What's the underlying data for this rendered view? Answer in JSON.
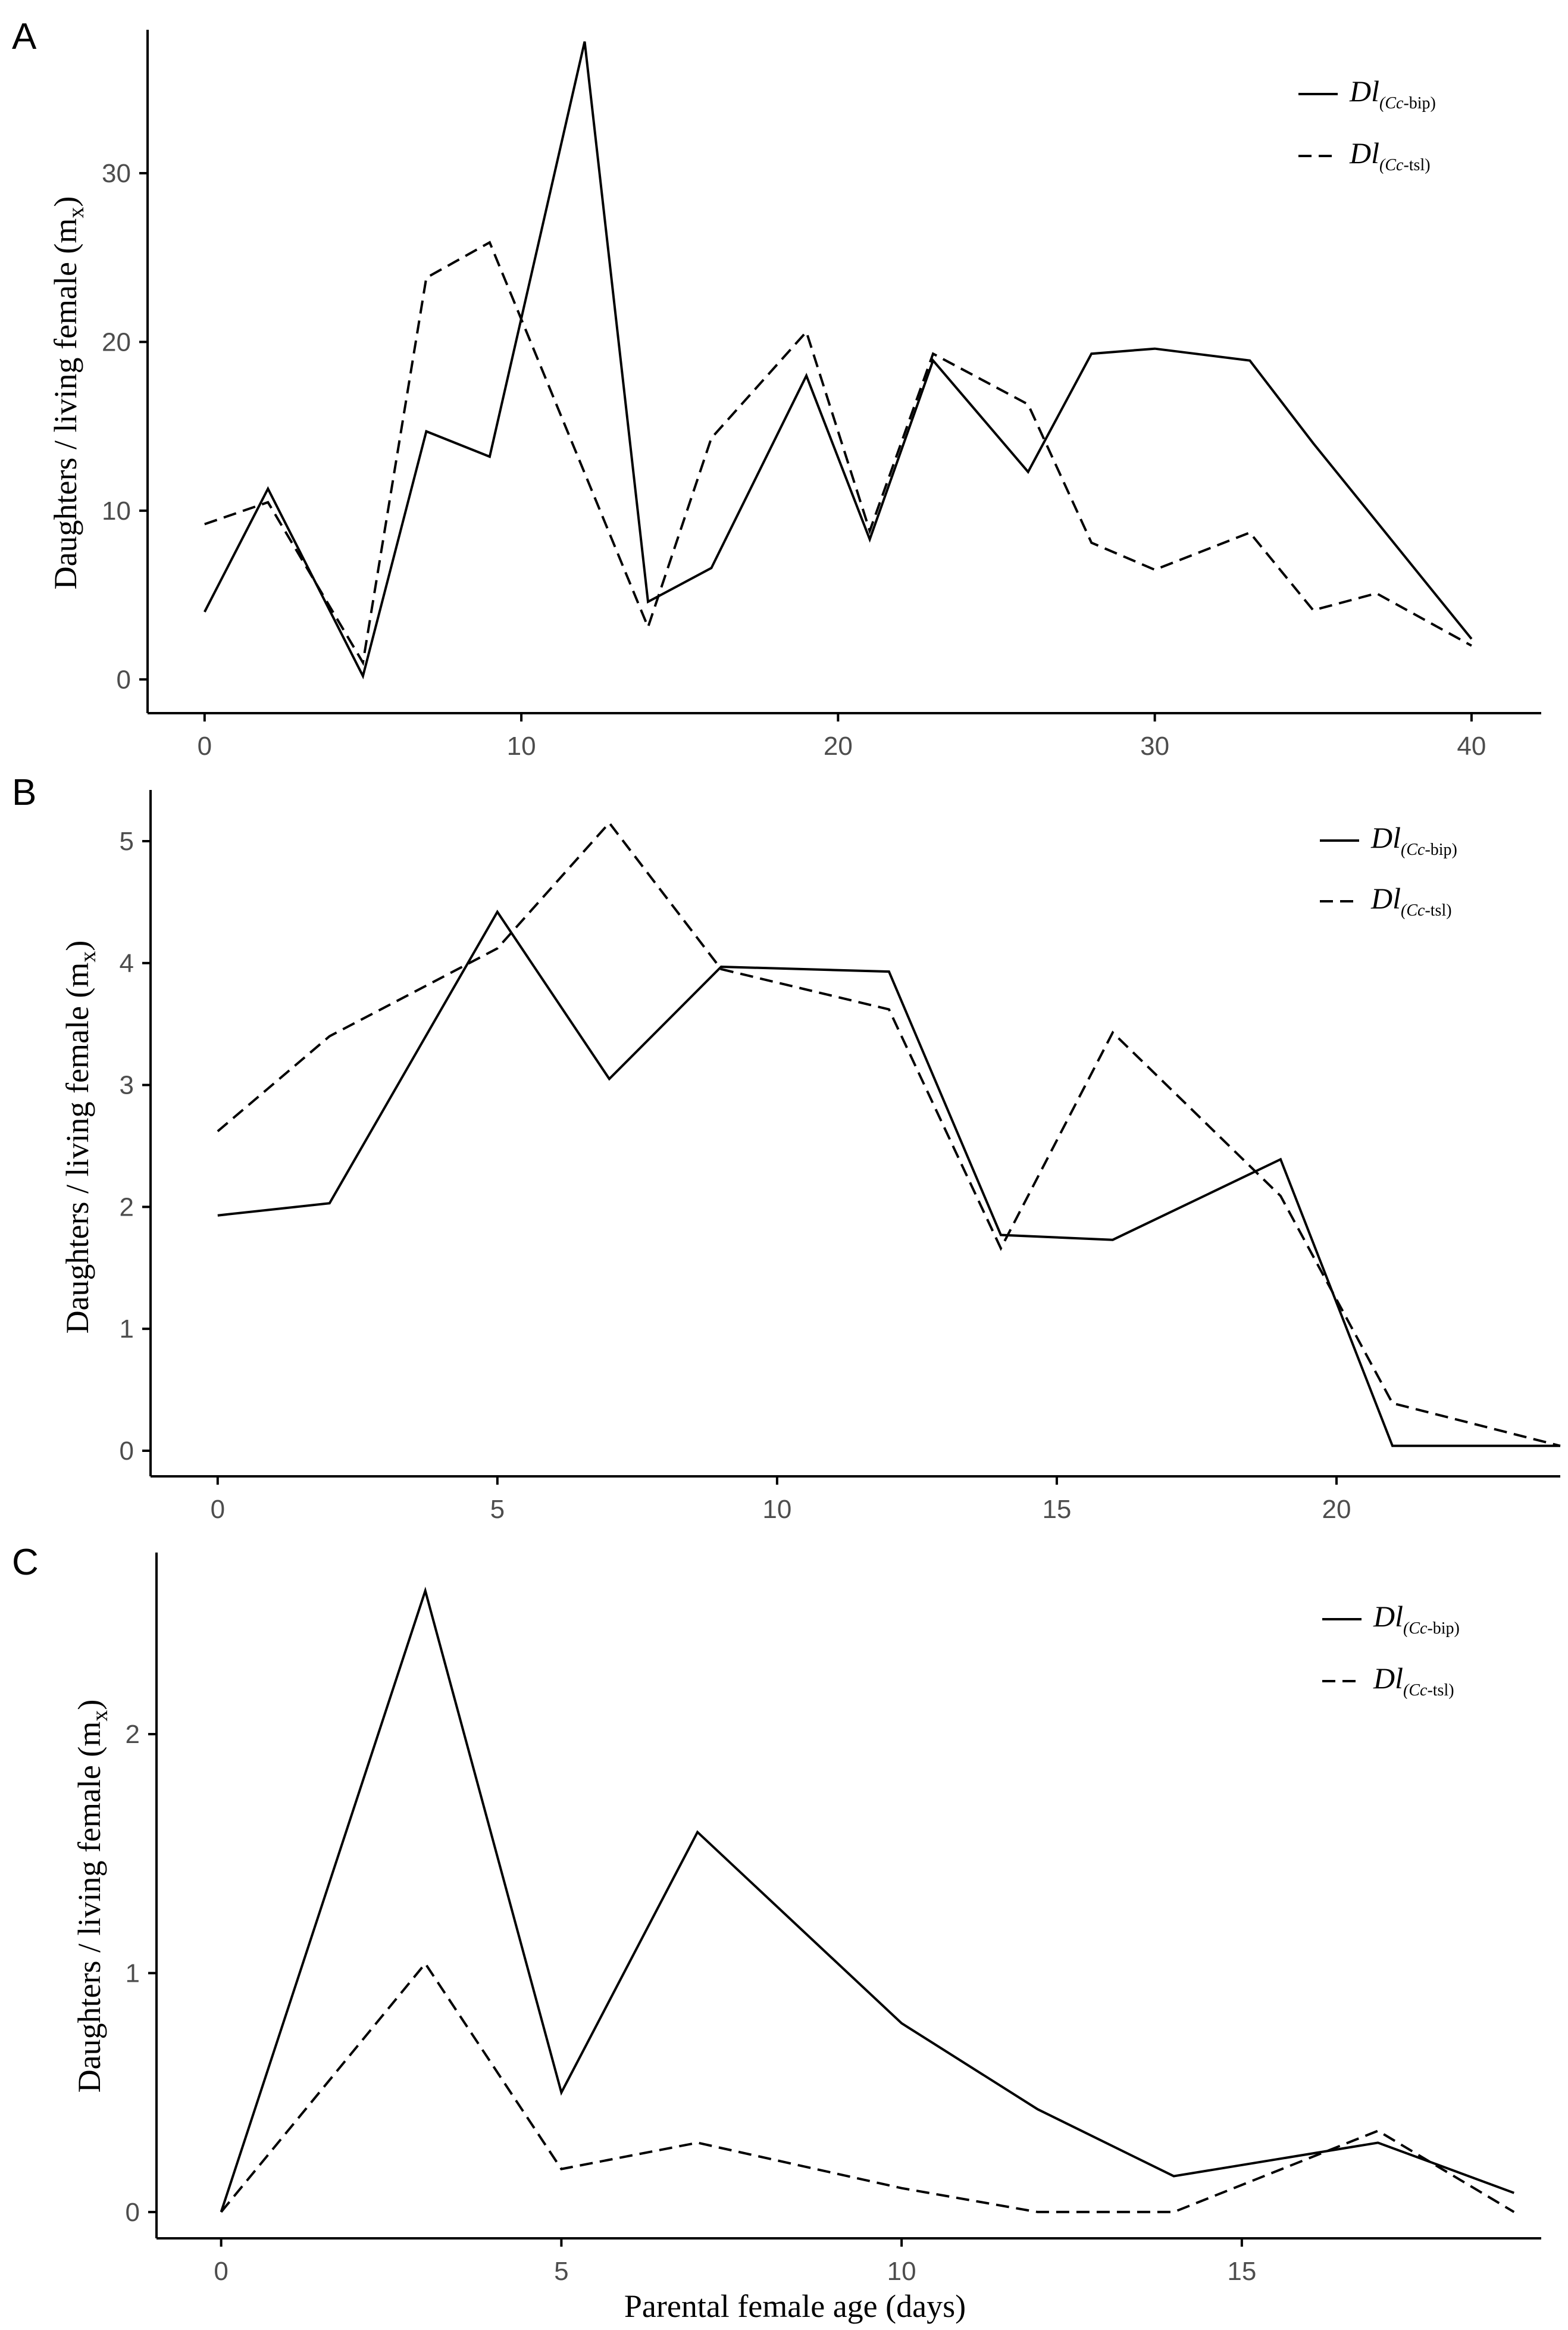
{
  "xlabel": "Parental female age (days)",
  "chart_data": [
    {
      "panel": "A",
      "type": "line",
      "ylabel": "Daughters / living female (m",
      "ylabel_sub": "x",
      "ylabel_close": ")",
      "xlim": [
        -1.8,
        42.2
      ],
      "ylim": [
        -2,
        38.5
      ],
      "xticks": [
        0,
        10,
        20,
        30,
        40
      ],
      "yticks": [
        0,
        10,
        20,
        30
      ],
      "legend": {
        "position": "top-right"
      },
      "series": [
        {
          "name": "Dl(Cc-bip)",
          "label_main": "Dl",
          "label_open": "(",
          "label_italic": "Cc",
          "label_rest": "-bip)",
          "style": "solid",
          "x": [
            0,
            2,
            5,
            7,
            9,
            12,
            14,
            16,
            19,
            21,
            23,
            26,
            28,
            30,
            33,
            35,
            40
          ],
          "values": [
            4.0,
            11.3,
            0.2,
            14.7,
            13.2,
            37.8,
            4.6,
            6.6,
            18.0,
            8.3,
            18.9,
            12.3,
            19.3,
            19.6,
            18.9,
            14.0,
            2.4
          ]
        },
        {
          "name": "Dl(Cc-tsl)",
          "label_main": "Dl",
          "label_open": "(",
          "label_italic": "Cc",
          "label_rest": "-tsl)",
          "style": "dashed",
          "x": [
            0,
            2,
            5,
            7,
            9,
            14,
            16,
            19,
            21,
            23,
            26,
            28,
            30,
            33,
            35,
            37,
            40
          ],
          "values": [
            9.2,
            10.5,
            1.0,
            23.8,
            25.9,
            3.1,
            14.3,
            20.6,
            8.8,
            19.3,
            16.3,
            8.1,
            6.5,
            8.7,
            4.1,
            5.1,
            2.0
          ]
        }
      ]
    },
    {
      "panel": "B",
      "type": "line",
      "ylabel": "Daughters / living female (m",
      "ylabel_sub": "x",
      "ylabel_close": ")",
      "xlim": [
        -1.2,
        24
      ],
      "ylim": [
        -0.21,
        5.42
      ],
      "xticks": [
        0,
        5,
        10,
        15,
        20
      ],
      "yticks": [
        0,
        1,
        2,
        3,
        4,
        5
      ],
      "legend": {
        "position": "top-right"
      },
      "series": [
        {
          "name": "Dl(Cc-bip)",
          "label_main": "Dl",
          "label_open": "(",
          "label_italic": "Cc",
          "label_rest": "-bip)",
          "style": "solid",
          "x": [
            0,
            2,
            5,
            7,
            9,
            12,
            14,
            16,
            19,
            21,
            24
          ],
          "values": [
            1.93,
            2.03,
            4.42,
            3.05,
            3.97,
            3.93,
            1.77,
            1.73,
            2.39,
            0.04,
            0.04
          ]
        },
        {
          "name": "Dl(Cc-tsl)",
          "label_main": "Dl",
          "label_open": "(",
          "label_italic": "Cc",
          "label_rest": "-tsl)",
          "style": "dashed",
          "x": [
            0,
            2,
            5,
            7,
            9,
            12,
            14,
            16,
            19,
            21,
            24
          ],
          "values": [
            2.62,
            3.4,
            4.12,
            5.15,
            3.95,
            3.62,
            1.66,
            3.43,
            2.09,
            0.39,
            0.04
          ]
        }
      ]
    },
    {
      "panel": "C",
      "type": "line",
      "ylabel": "Daughters / living female (m",
      "ylabel_sub": "x",
      "ylabel_close": ")",
      "xlim": [
        -0.95,
        19.4
      ],
      "ylim": [
        -0.11,
        2.76
      ],
      "xticks": [
        0,
        5,
        10,
        15
      ],
      "yticks": [
        0,
        1,
        2
      ],
      "legend": {
        "position": "top-right"
      },
      "series": [
        {
          "name": "Dl(Cc-bip)",
          "label_main": "Dl",
          "label_open": "(",
          "label_italic": "Cc",
          "label_rest": "-bip)",
          "style": "solid",
          "x": [
            0,
            3,
            5,
            7,
            10,
            12,
            14,
            17,
            19
          ],
          "values": [
            0.0,
            2.6,
            0.5,
            1.59,
            0.79,
            0.43,
            0.15,
            0.29,
            0.08
          ]
        },
        {
          "name": "Dl(Cc-tsl)",
          "label_main": "Dl",
          "label_open": "(",
          "label_italic": "Cc",
          "label_rest": "-tsl)",
          "style": "dashed",
          "x": [
            0,
            3,
            5,
            7,
            10,
            12,
            14,
            17,
            19
          ],
          "values": [
            0.0,
            1.04,
            0.18,
            0.29,
            0.1,
            0.0,
            0.0,
            0.34,
            0.0
          ]
        }
      ]
    }
  ]
}
